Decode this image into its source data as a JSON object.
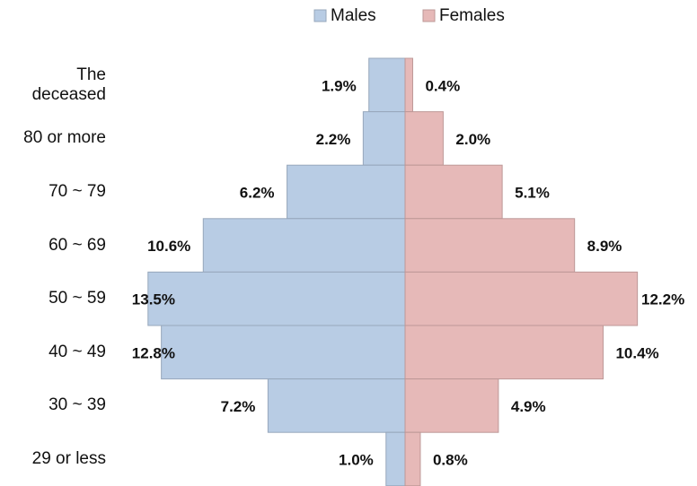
{
  "chart_data": {
    "type": "pyramid",
    "categories": [
      "The deceased",
      "80 or more",
      "70 ~ 79",
      "60 ~ 69",
      "50 ~ 59",
      "40 ~ 49",
      "30 ~ 39",
      "29 or less"
    ],
    "xlim": [
      -15,
      15
    ],
    "legend": "top",
    "series": [
      {
        "name": "Males",
        "color": "#b8cce4",
        "side": "left",
        "values": [
          1.9,
          2.2,
          6.2,
          10.6,
          13.5,
          12.8,
          7.2,
          1.0
        ],
        "value_labels": [
          "1.9%",
          "2.2%",
          "6.2%",
          "10.6%",
          "13.5%",
          "12.8%",
          "7.2%",
          "1.0%"
        ]
      },
      {
        "name": "Females",
        "color": "#e6b9b8",
        "side": "right",
        "values": [
          0.4,
          2.0,
          5.1,
          8.9,
          12.2,
          10.4,
          4.9,
          0.8
        ],
        "value_labels": [
          "0.4%",
          "2.0%",
          "5.1%",
          "8.9%",
          "12.2%",
          "10.4%",
          "4.9%",
          "0.8%"
        ]
      }
    ]
  }
}
